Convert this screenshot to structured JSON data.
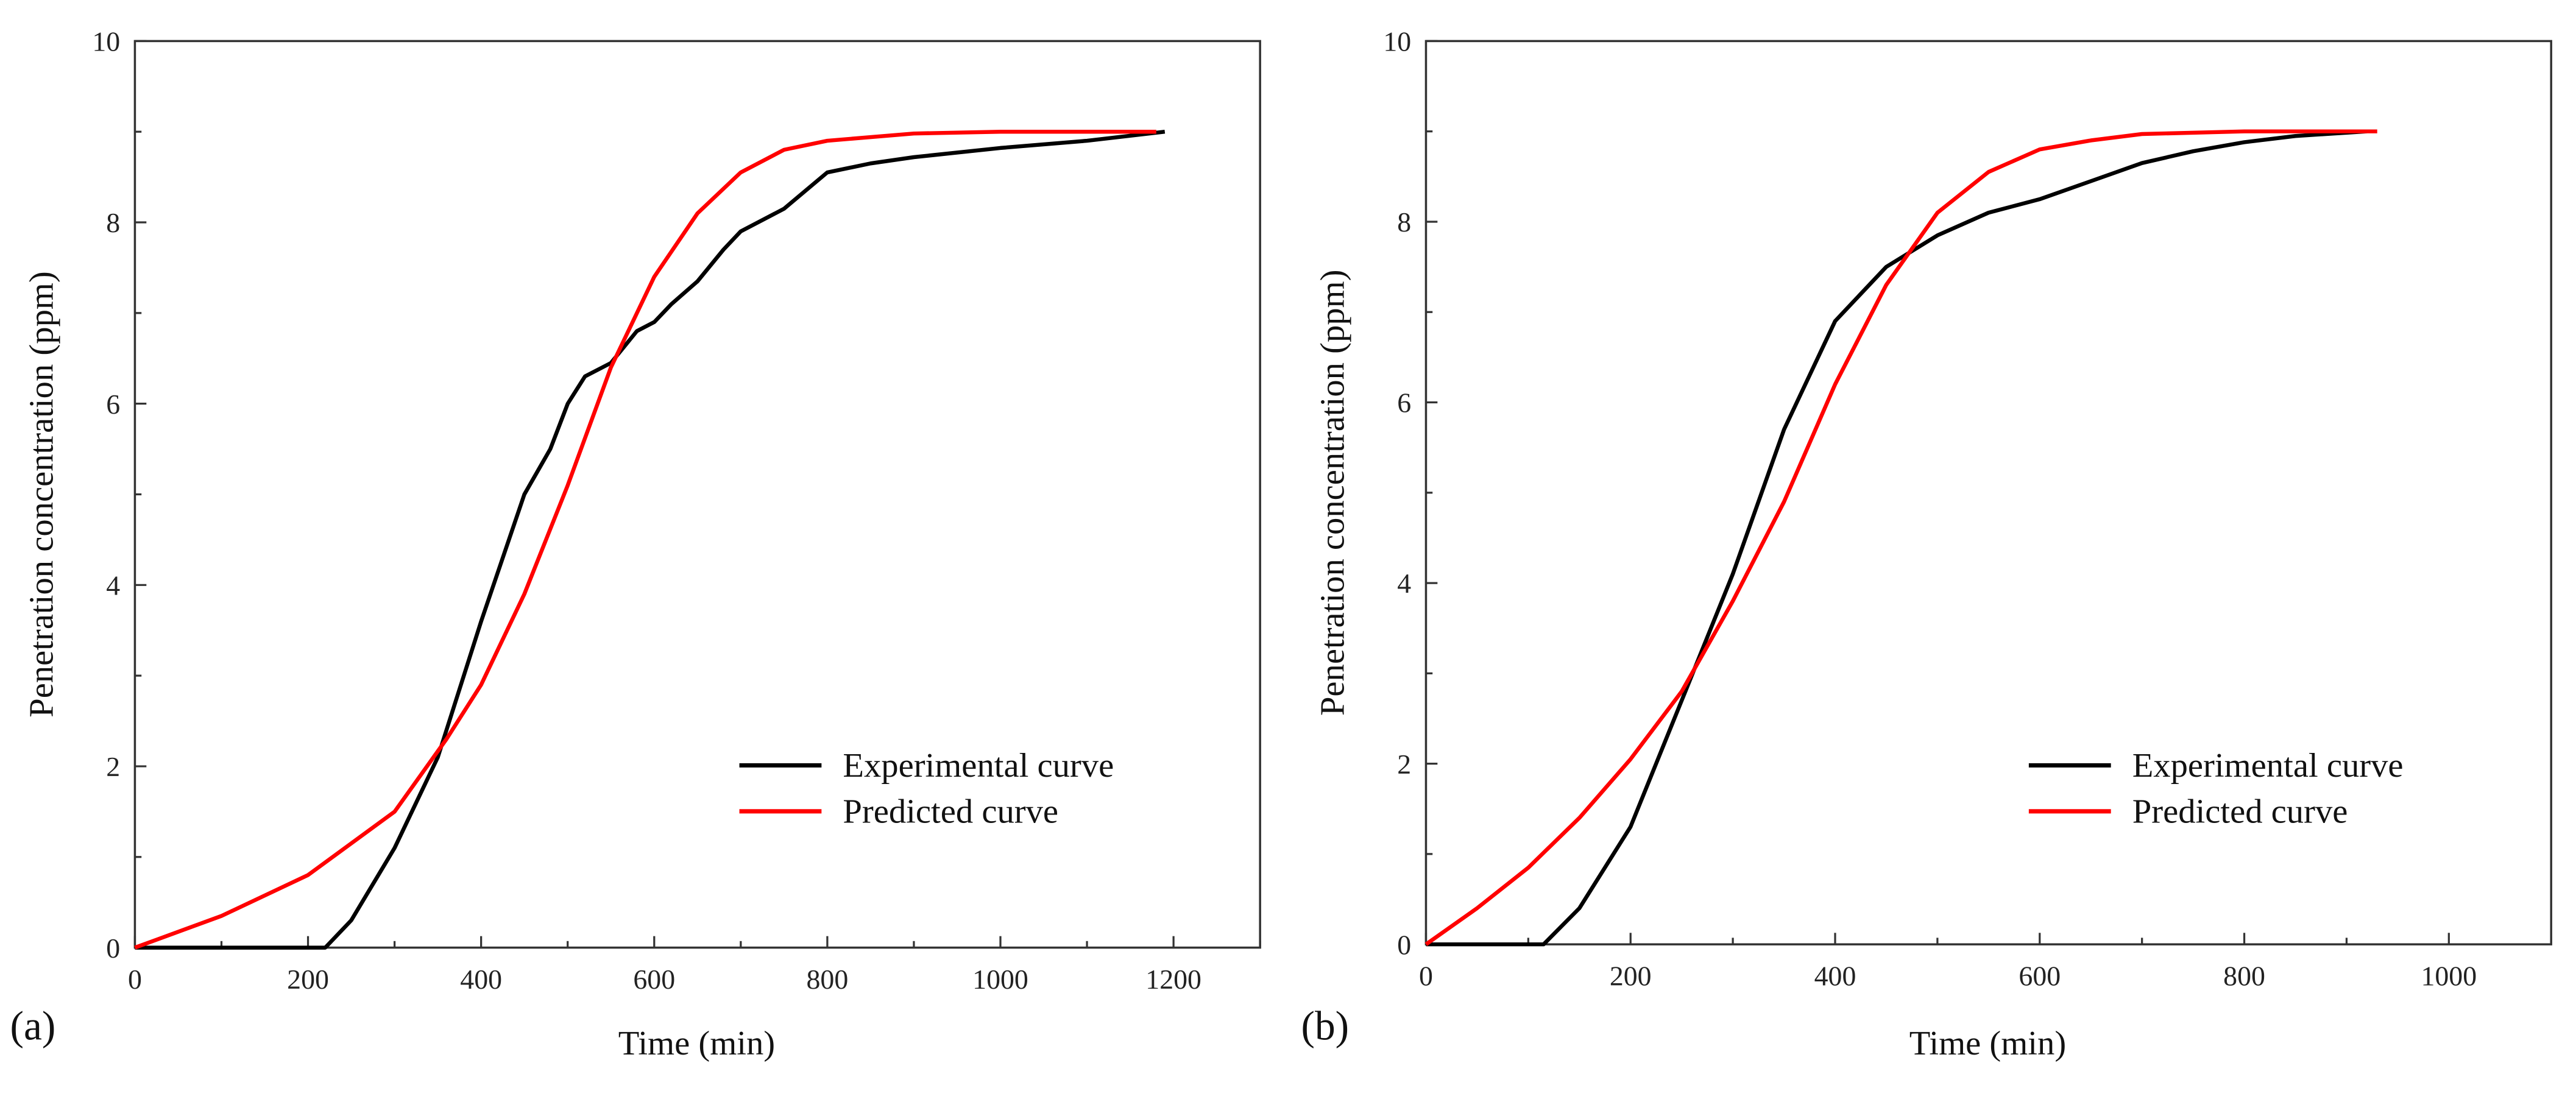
{
  "chart_data": [
    {
      "type": "line",
      "panel_label": "(a)",
      "xlabel": "Time (min)",
      "ylabel": "Penetration concentration (ppm)",
      "xlim": [
        0,
        1300
      ],
      "ylim": [
        0,
        10
      ],
      "xticks": [
        0,
        200,
        400,
        600,
        800,
        1000,
        1200
      ],
      "yticks": [
        0,
        2,
        4,
        6,
        8,
        10
      ],
      "grid": false,
      "legend_position": "lower-right",
      "series": [
        {
          "name": "Experimental curve",
          "color": "#000000",
          "x": [
            0,
            220,
            250,
            300,
            350,
            400,
            450,
            480,
            500,
            520,
            550,
            580,
            600,
            620,
            650,
            680,
            700,
            750,
            800,
            850,
            900,
            1000,
            1100,
            1190
          ],
          "y": [
            0,
            0,
            0.3,
            1.1,
            2.1,
            3.6,
            5.0,
            5.5,
            6.0,
            6.3,
            6.45,
            6.8,
            6.9,
            7.1,
            7.35,
            7.7,
            7.9,
            8.15,
            8.55,
            8.65,
            8.72,
            8.82,
            8.9,
            9.0
          ]
        },
        {
          "name": "Predicted curve",
          "color": "#ff0000",
          "x": [
            0,
            100,
            200,
            300,
            360,
            400,
            450,
            500,
            550,
            600,
            650,
            700,
            750,
            800,
            900,
            1000,
            1180
          ],
          "y": [
            0,
            0.35,
            0.8,
            1.5,
            2.3,
            2.9,
            3.9,
            5.1,
            6.4,
            7.4,
            8.1,
            8.55,
            8.8,
            8.9,
            8.98,
            9.0,
            9.0
          ]
        }
      ]
    },
    {
      "type": "line",
      "panel_label": "(b)",
      "xlabel": "Time (min)",
      "ylabel": "Penetration concentration (ppm)",
      "xlim": [
        0,
        1100
      ],
      "ylim": [
        0,
        10
      ],
      "xticks": [
        0,
        200,
        400,
        600,
        800,
        1000
      ],
      "yticks": [
        0,
        2,
        4,
        6,
        8,
        10
      ],
      "grid": false,
      "legend_position": "lower-right",
      "series": [
        {
          "name": "Experimental curve",
          "color": "#000000",
          "x": [
            0,
            115,
            150,
            200,
            250,
            300,
            350,
            400,
            450,
            500,
            550,
            600,
            650,
            700,
            750,
            800,
            850,
            920
          ],
          "y": [
            0,
            0,
            0.4,
            1.3,
            2.7,
            4.1,
            5.7,
            6.9,
            7.5,
            7.85,
            8.1,
            8.25,
            8.45,
            8.65,
            8.78,
            8.88,
            8.95,
            9.0
          ]
        },
        {
          "name": "Predicted curve",
          "color": "#ff0000",
          "x": [
            0,
            50,
            100,
            150,
            200,
            250,
            300,
            350,
            400,
            450,
            500,
            550,
            600,
            650,
            700,
            800,
            930
          ],
          "y": [
            0,
            0.4,
            0.85,
            1.4,
            2.05,
            2.8,
            3.8,
            4.9,
            6.2,
            7.3,
            8.1,
            8.55,
            8.8,
            8.9,
            8.97,
            9.0,
            9.0
          ]
        }
      ]
    }
  ]
}
